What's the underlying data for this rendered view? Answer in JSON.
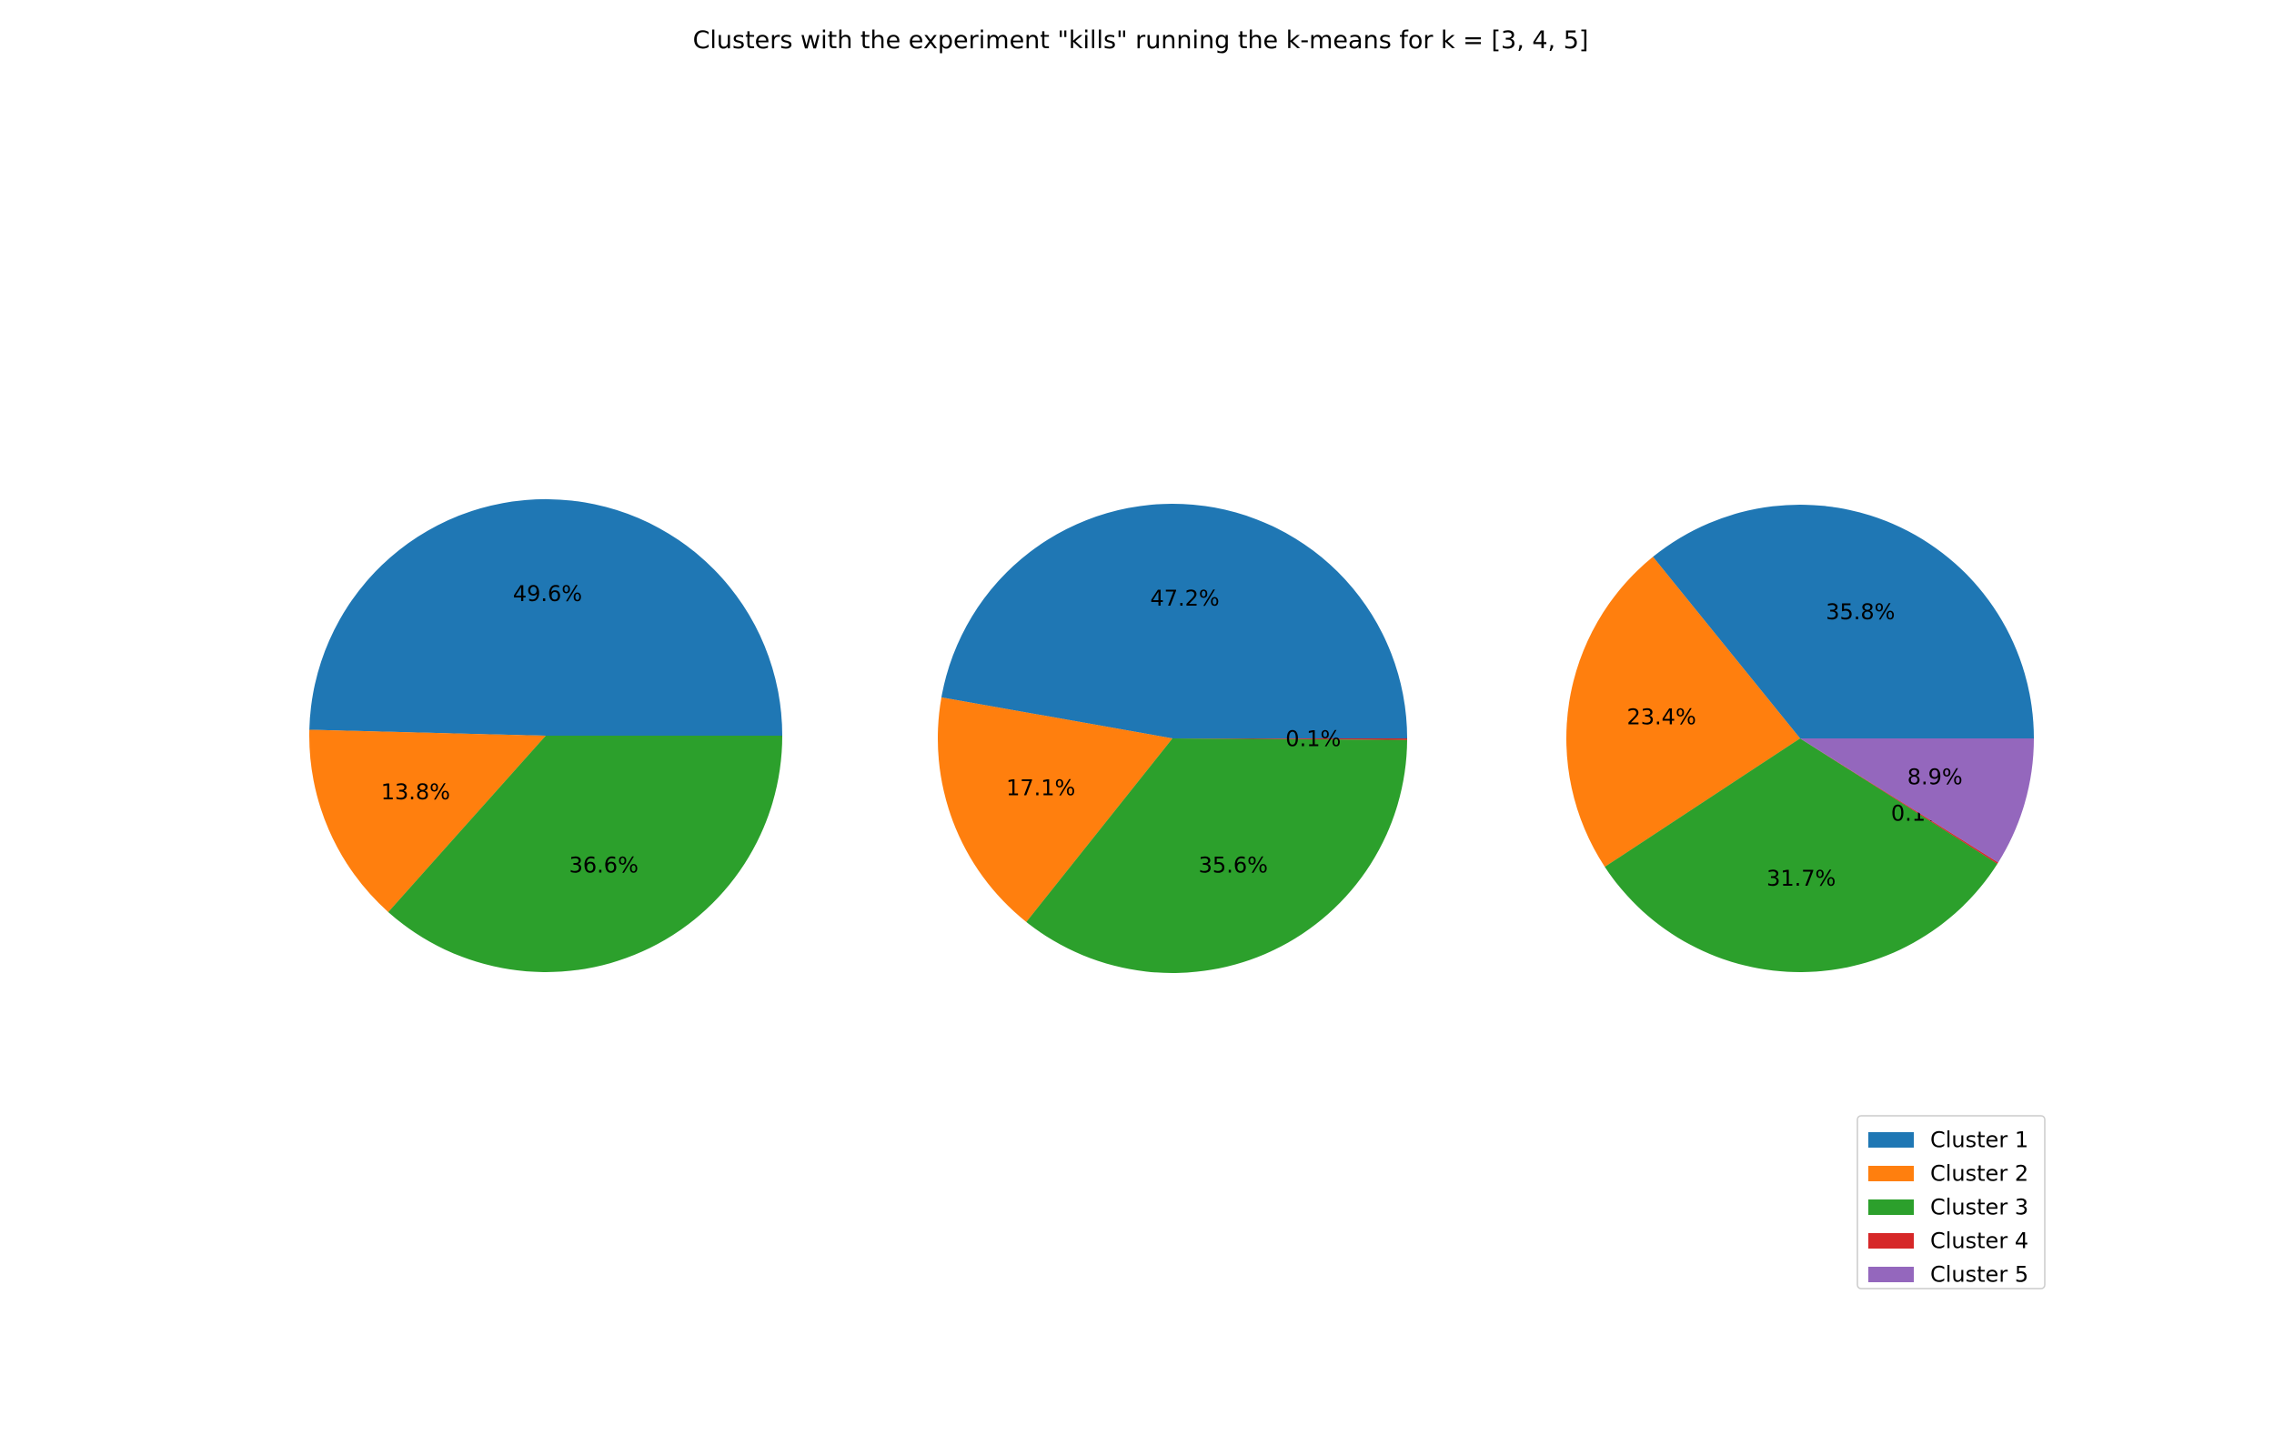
{
  "chart_data": {
    "title": "Clusters with the experiment \"kills\" running the k-means for k = [3, 4, 5]",
    "legend": {
      "placement": "lower-right",
      "entries": [
        {
          "label": "Cluster 1",
          "color": "#1f77b4"
        },
        {
          "label": "Cluster 2",
          "color": "#ff7f0e"
        },
        {
          "label": "Cluster 3",
          "color": "#2ca02c"
        },
        {
          "label": "Cluster 4",
          "color": "#d62728"
        },
        {
          "label": "Cluster 5",
          "color": "#9467bd"
        }
      ]
    },
    "charts": [
      {
        "type": "pie",
        "k": 3,
        "categories": [
          "Cluster 1",
          "Cluster 2",
          "Cluster 3"
        ],
        "values": [
          49.6,
          13.8,
          36.6
        ],
        "labels": [
          "49.6%",
          "13.8%",
          "36.6%"
        ],
        "colors": [
          "#1f77b4",
          "#ff7f0e",
          "#2ca02c"
        ]
      },
      {
        "type": "pie",
        "k": 4,
        "categories": [
          "Cluster 1",
          "Cluster 2",
          "Cluster 3",
          "Cluster 4"
        ],
        "values": [
          47.2,
          17.1,
          35.6,
          0.1
        ],
        "labels": [
          "47.2%",
          "17.1%",
          "35.6%",
          "0.1%"
        ],
        "colors": [
          "#1f77b4",
          "#ff7f0e",
          "#2ca02c",
          "#d62728"
        ]
      },
      {
        "type": "pie",
        "k": 5,
        "categories": [
          "Cluster 1",
          "Cluster 2",
          "Cluster 3",
          "Cluster 4",
          "Cluster 5"
        ],
        "values": [
          35.8,
          23.4,
          31.7,
          0.1,
          8.9
        ],
        "labels": [
          "35.8%",
          "23.4%",
          "31.7%",
          "0.1%",
          "8.9%"
        ],
        "colors": [
          "#1f77b4",
          "#ff7f0e",
          "#2ca02c",
          "#d62728",
          "#9467bd"
        ]
      }
    ]
  }
}
